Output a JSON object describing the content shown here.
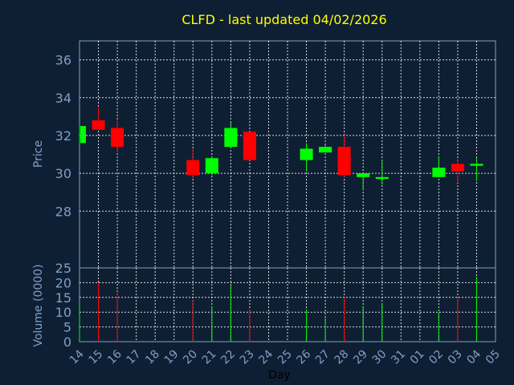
{
  "chart_data": {
    "type": "candlestick",
    "title": "CLFD - last updated 04/02/2026",
    "xlabel": "Day",
    "price_panel": {
      "ylabel": "Price",
      "ylim": [
        25,
        37
      ],
      "yticks": [
        28,
        30,
        32,
        34,
        36
      ],
      "grid": true
    },
    "volume_panel": {
      "ylabel": "Volume (0000)",
      "ylim": [
        0,
        25
      ],
      "yticks": [
        0,
        5,
        10,
        15,
        20,
        25
      ],
      "grid": true
    },
    "x_tick_labels": [
      "14",
      "15",
      "16",
      "17",
      "18",
      "19",
      "20",
      "21",
      "22",
      "23",
      "24",
      "25",
      "26",
      "27",
      "28",
      "29",
      "30",
      "31",
      "01",
      "02",
      "03",
      "04",
      "05"
    ],
    "up_color": "#00ff00",
    "down_color": "#ff0000",
    "candles": [
      {
        "day": "14",
        "open": 31.6,
        "high": 32.5,
        "low": 31.6,
        "close": 32.5,
        "volume": 12
      },
      {
        "day": "15",
        "open": 32.8,
        "high": 33.5,
        "low": 32.3,
        "close": 32.3,
        "volume": 20
      },
      {
        "day": "16",
        "open": 32.4,
        "high": 32.8,
        "low": 31.1,
        "close": 31.4,
        "volume": 17
      },
      {
        "day": "20",
        "open": 30.7,
        "high": 31.3,
        "low": 29.7,
        "close": 29.9,
        "volume": 14
      },
      {
        "day": "21",
        "open": 30.0,
        "high": 30.9,
        "low": 29.9,
        "close": 30.8,
        "volume": 12
      },
      {
        "day": "22",
        "open": 31.4,
        "high": 32.7,
        "low": 31.4,
        "close": 32.4,
        "volume": 19
      },
      {
        "day": "23",
        "open": 32.2,
        "high": 32.2,
        "low": 30.7,
        "close": 30.7,
        "volume": 11
      },
      {
        "day": "26",
        "open": 30.7,
        "high": 31.6,
        "low": 30.1,
        "close": 31.3,
        "volume": 11
      },
      {
        "day": "27",
        "open": 31.1,
        "high": 31.5,
        "low": 31.1,
        "close": 31.4,
        "volume": 8
      },
      {
        "day": "28",
        "open": 31.4,
        "high": 32.0,
        "low": 29.8,
        "close": 29.9,
        "volume": 15
      },
      {
        "day": "29",
        "open": 29.8,
        "high": 30.0,
        "low": 29.1,
        "close": 30.0,
        "volume": 12
      },
      {
        "day": "30",
        "open": 29.7,
        "high": 30.7,
        "low": 29.4,
        "close": 29.8,
        "volume": 13
      },
      {
        "day": "02",
        "open": 29.8,
        "high": 30.9,
        "low": 29.8,
        "close": 30.3,
        "volume": 10
      },
      {
        "day": "03",
        "open": 30.5,
        "high": 30.7,
        "low": 29.5,
        "close": 30.1,
        "volume": 15
      },
      {
        "day": "04",
        "open": 30.4,
        "high": 30.8,
        "low": 29.6,
        "close": 30.5,
        "volume": 22
      }
    ]
  }
}
